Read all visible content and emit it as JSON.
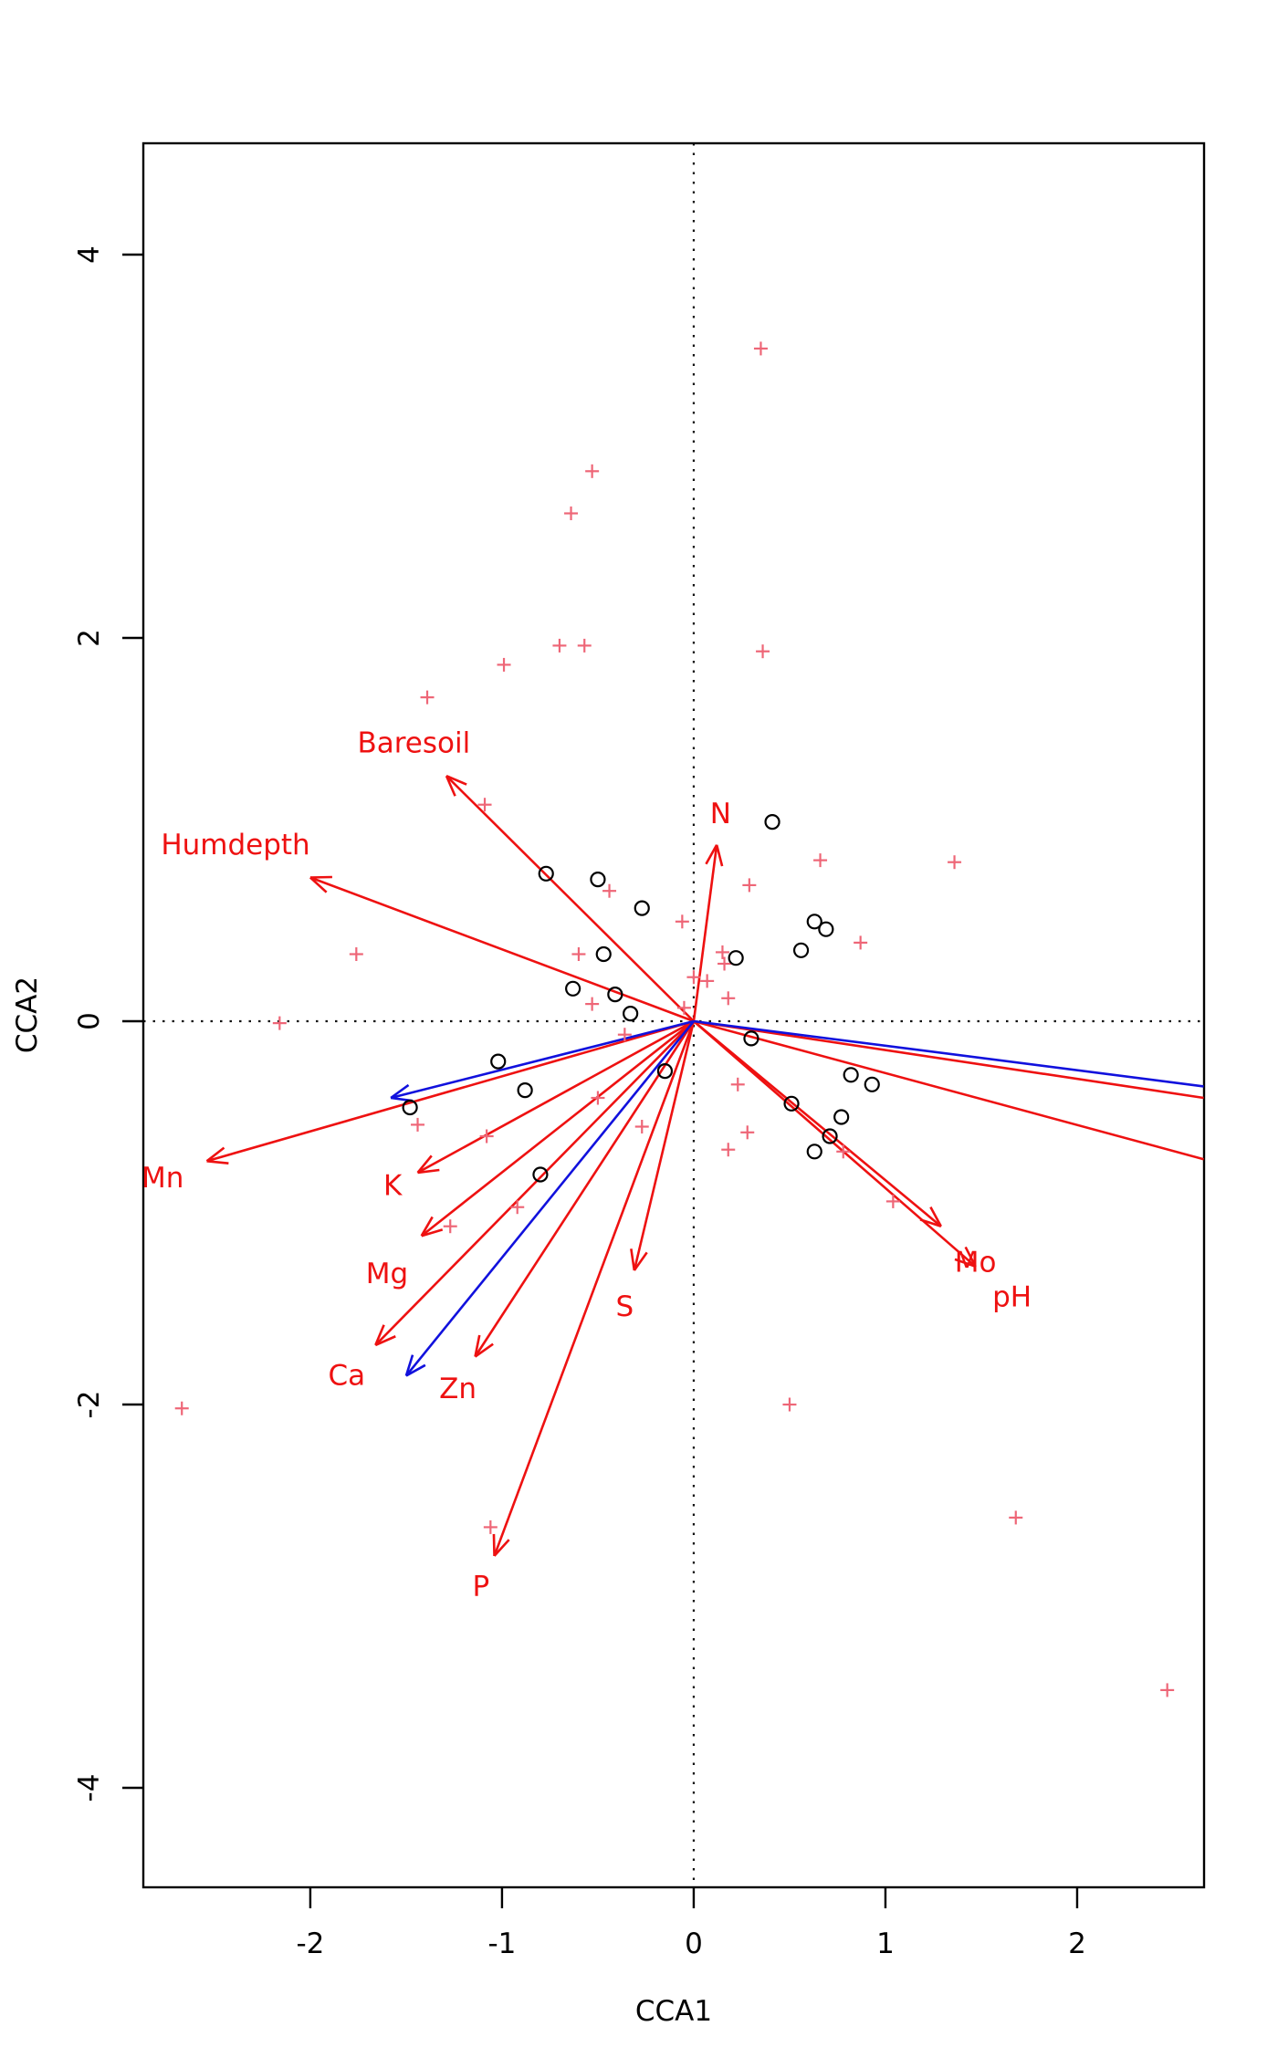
{
  "chart_data": {
    "type": "scatter",
    "subtype": "cca-biplot",
    "title": "",
    "xlabel": "CCA1",
    "ylabel": "CCA2",
    "xlim": [
      -2.871,
      2.662
    ],
    "ylim": [
      -4.519,
      4.581
    ],
    "x_ticks": [
      -2,
      -1,
      0,
      1,
      2
    ],
    "y_ticks": [
      -4,
      -2,
      0,
      2,
      4
    ],
    "grid": false,
    "reference_lines": {
      "vertical_at_x": 0,
      "horizontal_at_y": 0,
      "style": "dotted"
    },
    "colors": {
      "species_marker": "#ee6677",
      "sites_marker": "#000000",
      "red_arrow": "#ee1111",
      "blue_arrow": "#1111dd",
      "axis": "#000000"
    },
    "series": [
      {
        "name": "species",
        "marker": "+",
        "color": "#ee6677",
        "points": [
          [
            0.35,
            3.51
          ],
          [
            -0.53,
            2.87
          ],
          [
            -0.64,
            2.65
          ],
          [
            -0.7,
            1.96
          ],
          [
            -0.57,
            1.96
          ],
          [
            -0.99,
            1.86
          ],
          [
            0.36,
            1.93
          ],
          [
            -1.39,
            1.69
          ],
          [
            -1.09,
            1.13
          ],
          [
            0.66,
            0.84
          ],
          [
            1.36,
            0.83
          ],
          [
            0.29,
            0.71
          ],
          [
            -0.44,
            0.68
          ],
          [
            -0.06,
            0.52
          ],
          [
            0.87,
            0.41
          ],
          [
            -1.76,
            0.35
          ],
          [
            -0.6,
            0.35
          ],
          [
            0.15,
            0.36
          ],
          [
            0.16,
            0.3
          ],
          [
            0.0,
            0.23
          ],
          [
            0.07,
            0.21
          ],
          [
            -0.53,
            0.09
          ],
          [
            0.18,
            0.12
          ],
          [
            -0.05,
            0.07
          ],
          [
            -2.16,
            -0.01
          ],
          [
            -0.36,
            -0.07
          ],
          [
            0.23,
            -0.33
          ],
          [
            -0.5,
            -0.4
          ],
          [
            -1.44,
            -0.54
          ],
          [
            -1.08,
            -0.6
          ],
          [
            -0.27,
            -0.55
          ],
          [
            0.28,
            -0.58
          ],
          [
            0.18,
            -0.67
          ],
          [
            0.78,
            -0.68
          ],
          [
            1.04,
            -0.94
          ],
          [
            -0.92,
            -0.97
          ],
          [
            -1.27,
            -1.07
          ],
          [
            -2.67,
            -2.02
          ],
          [
            0.5,
            -2.0
          ],
          [
            -1.06,
            -2.64
          ],
          [
            1.68,
            -2.59
          ],
          [
            2.47,
            -3.49
          ]
        ]
      },
      {
        "name": "sites",
        "marker": "o",
        "color": "#000000",
        "points": [
          [
            0.41,
            1.04
          ],
          [
            -0.77,
            0.77
          ],
          [
            -0.5,
            0.74
          ],
          [
            -0.27,
            0.59
          ],
          [
            0.63,
            0.52
          ],
          [
            0.69,
            0.48
          ],
          [
            0.56,
            0.37
          ],
          [
            0.22,
            0.33
          ],
          [
            -0.47,
            0.35
          ],
          [
            -0.63,
            0.17
          ],
          [
            -0.41,
            0.14
          ],
          [
            -0.33,
            0.04
          ],
          [
            0.3,
            -0.09
          ],
          [
            -0.15,
            -0.26
          ],
          [
            0.82,
            -0.28
          ],
          [
            0.93,
            -0.33
          ],
          [
            -1.02,
            -0.21
          ],
          [
            -0.88,
            -0.36
          ],
          [
            -1.48,
            -0.45
          ],
          [
            0.51,
            -0.43
          ],
          [
            0.77,
            -0.5
          ],
          [
            0.71,
            -0.6
          ],
          [
            0.63,
            -0.68
          ],
          [
            -0.8,
            -0.8
          ]
        ]
      }
    ],
    "biplot_arrows_red": [
      {
        "label": "Baresoil",
        "tip": [
          -1.29,
          1.28
        ],
        "label_pos": [
          -1.46,
          1.45
        ]
      },
      {
        "label": "Humdepth",
        "tip": [
          -2.0,
          0.75
        ],
        "label_pos": [
          -2.39,
          0.92
        ]
      },
      {
        "label": "N",
        "tip": [
          0.12,
          0.92
        ],
        "label_pos": [
          0.14,
          1.08
        ]
      },
      {
        "label": "Mn",
        "tip": [
          -2.54,
          -0.73
        ],
        "label_pos": [
          -2.77,
          -0.82
        ]
      },
      {
        "label": "K",
        "tip": [
          -1.44,
          -0.79
        ],
        "label_pos": [
          -1.57,
          -0.86
        ]
      },
      {
        "label": "Mg",
        "tip": [
          -1.42,
          -1.12
        ],
        "label_pos": [
          -1.6,
          -1.32
        ]
      },
      {
        "label": "Ca",
        "tip": [
          -1.66,
          -1.69
        ],
        "label_pos": [
          -1.81,
          -1.85
        ]
      },
      {
        "label": "Zn",
        "tip": [
          -1.14,
          -1.75
        ],
        "label_pos": [
          -1.23,
          -1.92
        ]
      },
      {
        "label": "S",
        "tip": [
          -0.31,
          -1.3
        ],
        "label_pos": [
          -0.36,
          -1.49
        ]
      },
      {
        "label": "P",
        "tip": [
          -1.04,
          -2.79
        ],
        "label_pos": [
          -1.11,
          -2.95
        ]
      },
      {
        "label": "Mo",
        "tip": [
          1.29,
          -1.07
        ],
        "label_pos": [
          1.47,
          -1.26
        ]
      },
      {
        "label": "pH",
        "tip": [
          1.47,
          -1.28
        ],
        "label_pos": [
          1.66,
          -1.44
        ]
      },
      {
        "label": "",
        "tip": [
          2.66,
          -0.4
        ],
        "clipped": true
      },
      {
        "label": "",
        "tip": [
          2.66,
          -0.72
        ],
        "clipped": true
      }
    ],
    "biplot_arrows_blue": [
      {
        "label": "",
        "tip": [
          -1.58,
          -0.4
        ]
      },
      {
        "label": "",
        "tip": [
          -1.5,
          -1.85
        ]
      },
      {
        "label": "",
        "tip": [
          2.66,
          -0.34
        ],
        "clipped": true
      }
    ]
  }
}
